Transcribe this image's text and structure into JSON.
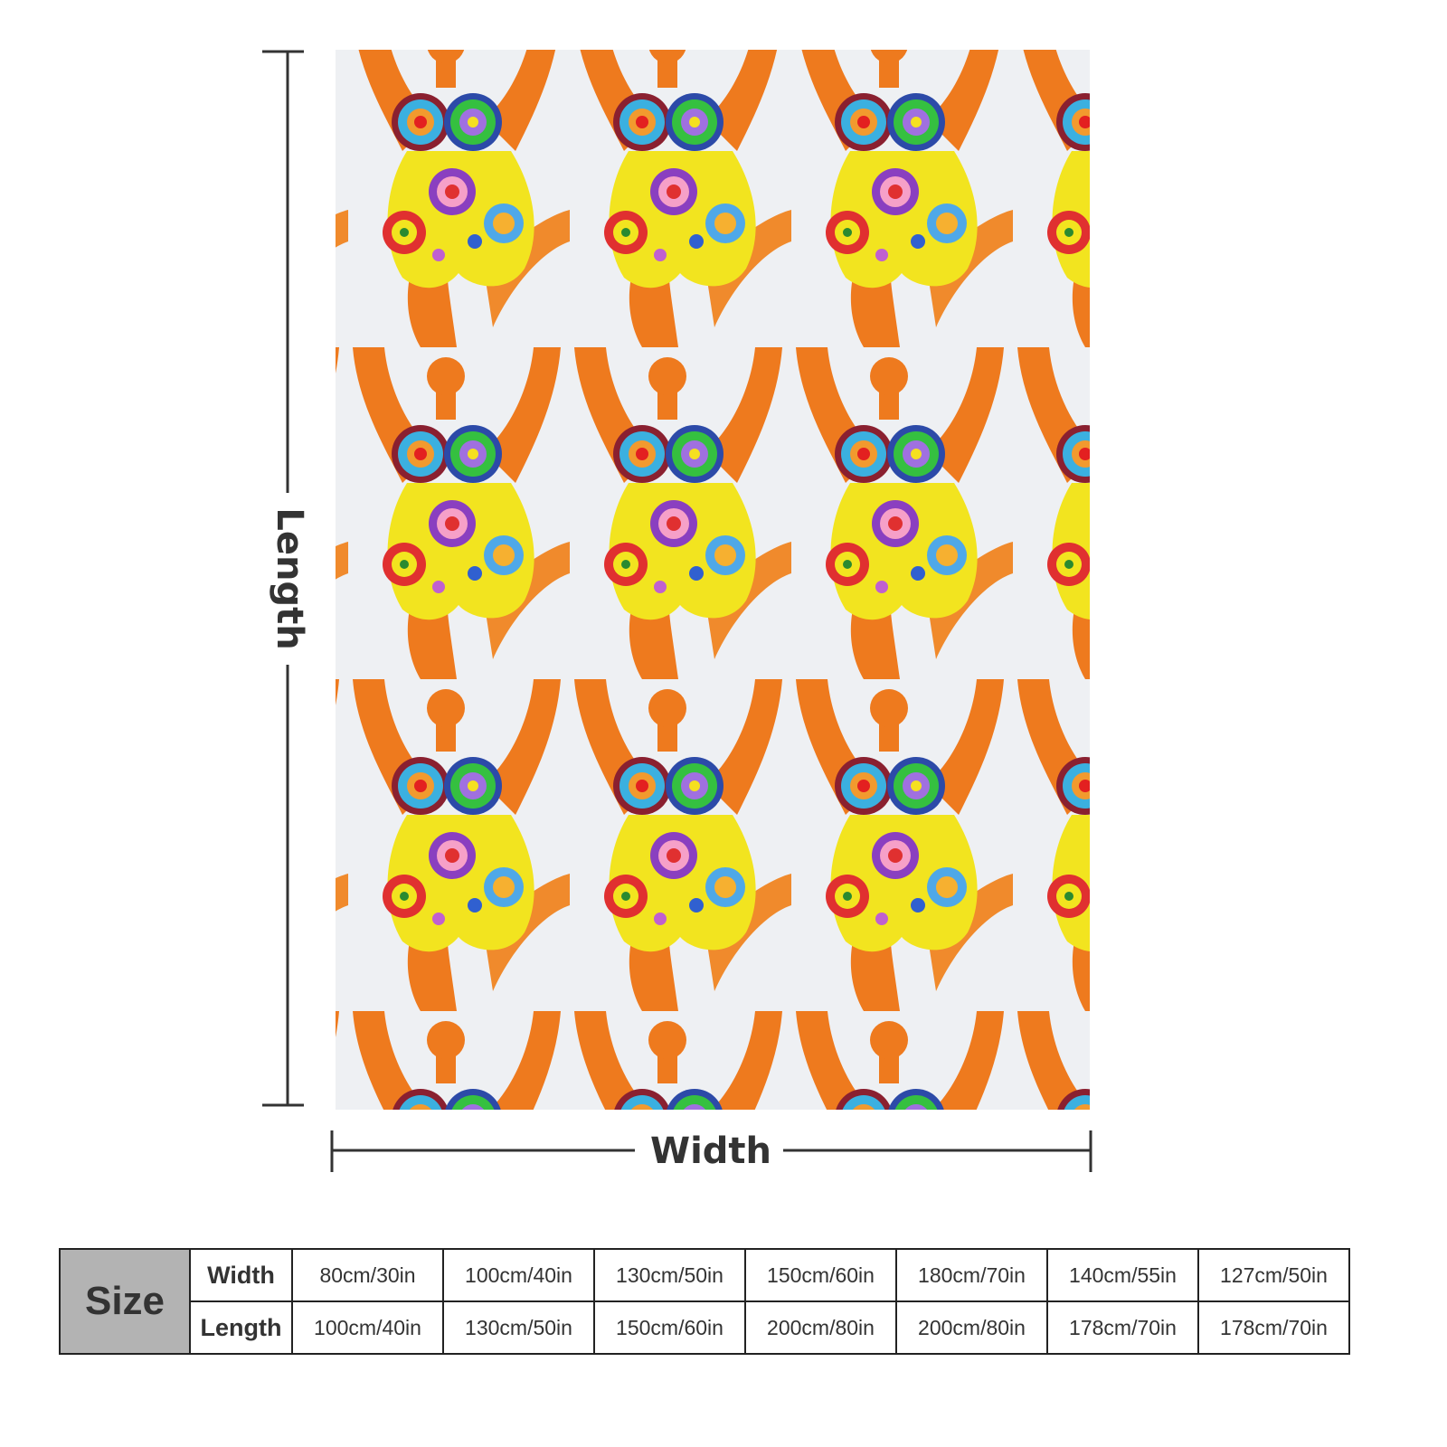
{
  "dimensions": {
    "length_label": "Length",
    "width_label": "Width"
  },
  "table": {
    "header": "Size",
    "rows": [
      {
        "label": "Width",
        "cells": [
          "80cm/30in",
          "100cm/40in",
          "130cm/50in",
          "150cm/60in",
          "180cm/70in",
          "140cm/55in",
          "127cm/50in"
        ]
      },
      {
        "label": "Length",
        "cells": [
          "100cm/40in",
          "130cm/50in",
          "150cm/60in",
          "200cm/80in",
          "200cm/80in",
          "178cm/70in",
          "178cm/70in"
        ]
      }
    ]
  }
}
